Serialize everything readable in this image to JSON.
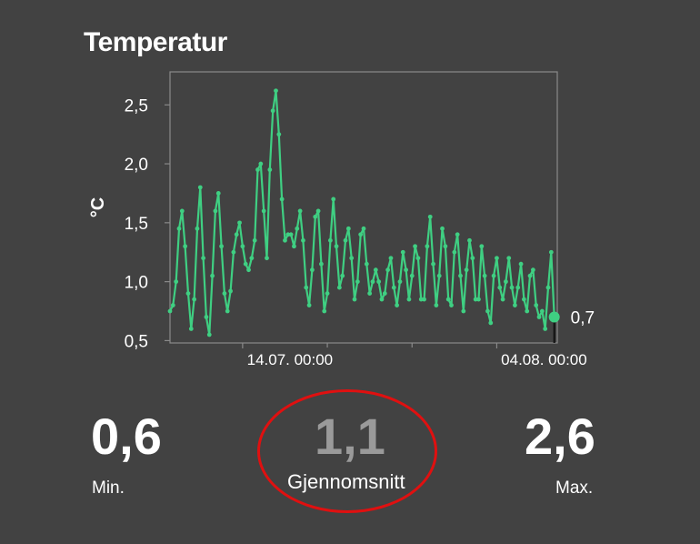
{
  "title": "Temperatur",
  "stats": {
    "min": {
      "value": "0,6",
      "label": "Min."
    },
    "avg": {
      "value": "1,1",
      "label": "Gjennomsnitt"
    },
    "max": {
      "value": "2,6",
      "label": "Max."
    }
  },
  "colors": {
    "series": "#3fcf82",
    "background": "#424242",
    "text": "#ffffff",
    "highlight": "#e01010",
    "muted": "#9a9a9a"
  },
  "chart_data": {
    "type": "line",
    "title": "",
    "xlabel": "",
    "ylabel": "°C",
    "ylim": [
      0.48,
      2.78
    ],
    "y_ticks": [
      0.5,
      1.0,
      1.5,
      2.0,
      2.5
    ],
    "y_tick_labels": [
      "0,5",
      "1,0",
      "1,5",
      "2,0",
      "2,5"
    ],
    "x_tick_labels": [
      "14.07. 00:00",
      "04.08. 00:00"
    ],
    "x_range": [
      "2023-07-08 00:00",
      "2023-08-09 00:00"
    ],
    "x_ticks": [
      "2023-07-14 00:00",
      "2023-08-04 00:00"
    ],
    "x_minor_ticks": [
      "2023-07-21 00:00",
      "2023-07-28 00:00"
    ],
    "last_value_label": "0,7",
    "grid": false,
    "series": [
      {
        "color": "#3fcf82",
        "points": [
          [
            "2023-07-08 00:00",
            0.75
          ],
          [
            "2023-07-08 06:00",
            0.8
          ],
          [
            "2023-07-08 12:00",
            1.0
          ],
          [
            "2023-07-08 18:00",
            1.45
          ],
          [
            "2023-07-09 00:00",
            1.6
          ],
          [
            "2023-07-09 06:00",
            1.3
          ],
          [
            "2023-07-09 12:00",
            0.9
          ],
          [
            "2023-07-09 18:00",
            0.6
          ],
          [
            "2023-07-10 00:00",
            0.85
          ],
          [
            "2023-07-10 06:00",
            1.45
          ],
          [
            "2023-07-10 12:00",
            1.8
          ],
          [
            "2023-07-10 18:00",
            1.2
          ],
          [
            "2023-07-11 00:00",
            0.7
          ],
          [
            "2023-07-11 06:00",
            0.55
          ],
          [
            "2023-07-11 12:00",
            1.05
          ],
          [
            "2023-07-11 18:00",
            1.6
          ],
          [
            "2023-07-12 00:00",
            1.75
          ],
          [
            "2023-07-12 06:00",
            1.3
          ],
          [
            "2023-07-12 12:00",
            0.9
          ],
          [
            "2023-07-12 18:00",
            0.75
          ],
          [
            "2023-07-13 00:00",
            0.92
          ],
          [
            "2023-07-13 06:00",
            1.25
          ],
          [
            "2023-07-13 12:00",
            1.4
          ],
          [
            "2023-07-13 18:00",
            1.5
          ],
          [
            "2023-07-14 00:00",
            1.3
          ],
          [
            "2023-07-14 06:00",
            1.15
          ],
          [
            "2023-07-14 12:00",
            1.1
          ],
          [
            "2023-07-14 18:00",
            1.2
          ],
          [
            "2023-07-15 00:00",
            1.35
          ],
          [
            "2023-07-15 06:00",
            1.95
          ],
          [
            "2023-07-15 12:00",
            2.0
          ],
          [
            "2023-07-15 18:00",
            1.6
          ],
          [
            "2023-07-16 00:00",
            1.2
          ],
          [
            "2023-07-16 06:00",
            1.95
          ],
          [
            "2023-07-16 12:00",
            2.45
          ],
          [
            "2023-07-16 18:00",
            2.62
          ],
          [
            "2023-07-17 00:00",
            2.25
          ],
          [
            "2023-07-17 06:00",
            1.7
          ],
          [
            "2023-07-17 12:00",
            1.35
          ],
          [
            "2023-07-17 18:00",
            1.4
          ],
          [
            "2023-07-18 00:00",
            1.4
          ],
          [
            "2023-07-18 06:00",
            1.3
          ],
          [
            "2023-07-18 12:00",
            1.45
          ],
          [
            "2023-07-18 18:00",
            1.6
          ],
          [
            "2023-07-19 00:00",
            1.35
          ],
          [
            "2023-07-19 06:00",
            0.95
          ],
          [
            "2023-07-19 12:00",
            0.8
          ],
          [
            "2023-07-19 18:00",
            1.1
          ],
          [
            "2023-07-20 00:00",
            1.55
          ],
          [
            "2023-07-20 06:00",
            1.6
          ],
          [
            "2023-07-20 12:00",
            1.15
          ],
          [
            "2023-07-20 18:00",
            0.75
          ],
          [
            "2023-07-21 00:00",
            0.9
          ],
          [
            "2023-07-21 06:00",
            1.35
          ],
          [
            "2023-07-21 12:00",
            1.7
          ],
          [
            "2023-07-21 18:00",
            1.3
          ],
          [
            "2023-07-22 00:00",
            0.95
          ],
          [
            "2023-07-22 06:00",
            1.05
          ],
          [
            "2023-07-22 12:00",
            1.35
          ],
          [
            "2023-07-22 18:00",
            1.45
          ],
          [
            "2023-07-23 00:00",
            1.2
          ],
          [
            "2023-07-23 06:00",
            0.85
          ],
          [
            "2023-07-23 12:00",
            1.0
          ],
          [
            "2023-07-23 18:00",
            1.4
          ],
          [
            "2023-07-24 00:00",
            1.45
          ],
          [
            "2023-07-24 06:00",
            1.15
          ],
          [
            "2023-07-24 12:00",
            0.9
          ],
          [
            "2023-07-24 18:00",
            1.0
          ],
          [
            "2023-07-25 00:00",
            1.1
          ],
          [
            "2023-07-25 06:00",
            1.0
          ],
          [
            "2023-07-25 12:00",
            0.85
          ],
          [
            "2023-07-25 18:00",
            0.9
          ],
          [
            "2023-07-26 00:00",
            1.1
          ],
          [
            "2023-07-26 06:00",
            1.2
          ],
          [
            "2023-07-26 12:00",
            0.95
          ],
          [
            "2023-07-26 18:00",
            0.8
          ],
          [
            "2023-07-27 00:00",
            1.0
          ],
          [
            "2023-07-27 06:00",
            1.25
          ],
          [
            "2023-07-27 12:00",
            1.1
          ],
          [
            "2023-07-27 18:00",
            0.85
          ],
          [
            "2023-07-28 00:00",
            1.05
          ],
          [
            "2023-07-28 06:00",
            1.3
          ],
          [
            "2023-07-28 12:00",
            1.2
          ],
          [
            "2023-07-28 18:00",
            0.85
          ],
          [
            "2023-07-29 00:00",
            0.85
          ],
          [
            "2023-07-29 06:00",
            1.3
          ],
          [
            "2023-07-29 12:00",
            1.55
          ],
          [
            "2023-07-29 18:00",
            1.15
          ],
          [
            "2023-07-30 00:00",
            0.8
          ],
          [
            "2023-07-30 06:00",
            1.05
          ],
          [
            "2023-07-30 12:00",
            1.45
          ],
          [
            "2023-07-30 18:00",
            1.3
          ],
          [
            "2023-07-31 00:00",
            0.85
          ],
          [
            "2023-07-31 06:00",
            0.8
          ],
          [
            "2023-07-31 12:00",
            1.25
          ],
          [
            "2023-07-31 18:00",
            1.4
          ],
          [
            "2023-08-01 00:00",
            1.05
          ],
          [
            "2023-08-01 06:00",
            0.75
          ],
          [
            "2023-08-01 12:00",
            1.1
          ],
          [
            "2023-08-01 18:00",
            1.35
          ],
          [
            "2023-08-02 00:00",
            1.2
          ],
          [
            "2023-08-02 06:00",
            0.85
          ],
          [
            "2023-08-02 12:00",
            0.85
          ],
          [
            "2023-08-02 18:00",
            1.3
          ],
          [
            "2023-08-03 00:00",
            1.05
          ],
          [
            "2023-08-03 06:00",
            0.75
          ],
          [
            "2023-08-03 12:00",
            0.65
          ],
          [
            "2023-08-03 18:00",
            1.05
          ],
          [
            "2023-08-04 00:00",
            1.2
          ],
          [
            "2023-08-04 06:00",
            0.95
          ],
          [
            "2023-08-04 12:00",
            0.85
          ],
          [
            "2023-08-04 18:00",
            1.0
          ],
          [
            "2023-08-05 00:00",
            1.2
          ],
          [
            "2023-08-05 06:00",
            0.95
          ],
          [
            "2023-08-05 12:00",
            0.8
          ],
          [
            "2023-08-05 18:00",
            0.95
          ],
          [
            "2023-08-06 00:00",
            1.15
          ],
          [
            "2023-08-06 06:00",
            0.85
          ],
          [
            "2023-08-06 12:00",
            0.75
          ],
          [
            "2023-08-06 18:00",
            1.05
          ],
          [
            "2023-08-07 00:00",
            1.1
          ],
          [
            "2023-08-07 06:00",
            0.8
          ],
          [
            "2023-08-07 12:00",
            0.7
          ],
          [
            "2023-08-07 18:00",
            0.75
          ],
          [
            "2023-08-08 00:00",
            0.6
          ],
          [
            "2023-08-08 06:00",
            0.95
          ],
          [
            "2023-08-08 12:00",
            1.25
          ],
          [
            "2023-08-08 18:00",
            0.7
          ]
        ]
      }
    ]
  }
}
